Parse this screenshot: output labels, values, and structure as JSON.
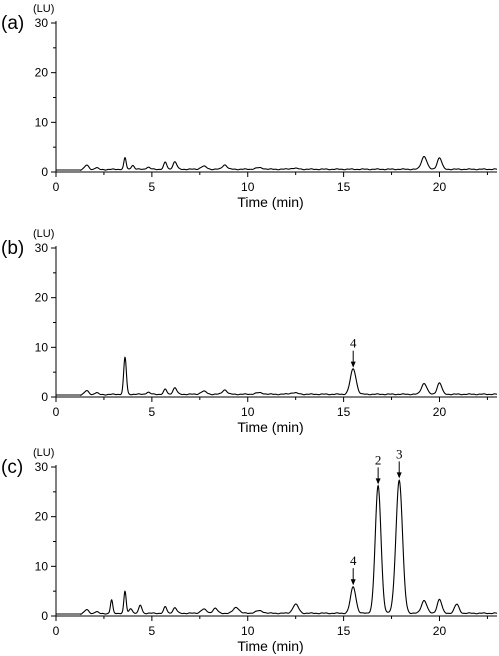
{
  "chart_data": [
    {
      "type": "line",
      "panel_label": "(a)",
      "unit_label": "(LU)",
      "xlabel": "Time (min)",
      "xlim": [
        0,
        23
      ],
      "ylim": [
        0,
        30
      ],
      "xticks": [
        0,
        5,
        10,
        15,
        20
      ],
      "yticks": [
        0,
        10,
        20,
        30
      ],
      "baseline": 0.4,
      "peaks": [
        {
          "t": 1.6,
          "h": 0.9,
          "w": 0.12
        },
        {
          "t": 2.1,
          "h": 0.4,
          "w": 0.1
        },
        {
          "t": 3.6,
          "h": 2.3,
          "w": 0.06
        },
        {
          "t": 4.0,
          "h": 0.8,
          "w": 0.08
        },
        {
          "t": 4.8,
          "h": 0.4,
          "w": 0.1
        },
        {
          "t": 5.7,
          "h": 1.4,
          "w": 0.08
        },
        {
          "t": 6.2,
          "h": 1.5,
          "w": 0.1
        },
        {
          "t": 7.7,
          "h": 0.6,
          "w": 0.15
        },
        {
          "t": 8.8,
          "h": 0.9,
          "w": 0.12
        },
        {
          "t": 10.6,
          "h": 0.3,
          "w": 0.2
        },
        {
          "t": 12.4,
          "h": 0.2,
          "w": 0.2
        },
        {
          "t": 19.2,
          "h": 2.6,
          "w": 0.14
        },
        {
          "t": 20.0,
          "h": 2.3,
          "w": 0.12
        }
      ],
      "annotations": []
    },
    {
      "type": "line",
      "panel_label": "(b)",
      "unit_label": "(LU)",
      "xlabel": "Time (min)",
      "xlim": [
        0,
        23
      ],
      "ylim": [
        0,
        30
      ],
      "xticks": [
        0,
        5,
        10,
        15,
        20
      ],
      "yticks": [
        0,
        10,
        20,
        30
      ],
      "baseline": 0.4,
      "peaks": [
        {
          "t": 1.6,
          "h": 0.8,
          "w": 0.12
        },
        {
          "t": 2.1,
          "h": 0.4,
          "w": 0.1
        },
        {
          "t": 3.6,
          "h": 7.4,
          "w": 0.07
        },
        {
          "t": 4.8,
          "h": 0.4,
          "w": 0.1
        },
        {
          "t": 5.7,
          "h": 1.0,
          "w": 0.08
        },
        {
          "t": 6.2,
          "h": 1.3,
          "w": 0.1
        },
        {
          "t": 7.7,
          "h": 0.6,
          "w": 0.15
        },
        {
          "t": 8.8,
          "h": 0.9,
          "w": 0.12
        },
        {
          "t": 10.6,
          "h": 0.3,
          "w": 0.2
        },
        {
          "t": 12.4,
          "h": 0.3,
          "w": 0.2
        },
        {
          "t": 15.5,
          "h": 5.1,
          "w": 0.15
        },
        {
          "t": 19.2,
          "h": 2.2,
          "w": 0.14
        },
        {
          "t": 20.0,
          "h": 2.3,
          "w": 0.12
        }
      ],
      "annotations": [
        {
          "label": "4",
          "x": 15.5,
          "y": 5.5
        }
      ]
    },
    {
      "type": "line",
      "panel_label": "(c)",
      "unit_label": "(LU)",
      "xlabel": "Time (min)",
      "xlim": [
        0,
        23
      ],
      "ylim": [
        0,
        30
      ],
      "xticks": [
        0,
        5,
        10,
        15,
        20
      ],
      "yticks": [
        0,
        10,
        20,
        30
      ],
      "baseline": 0.4,
      "peaks": [
        {
          "t": 1.6,
          "h": 0.8,
          "w": 0.12
        },
        {
          "t": 2.1,
          "h": 0.4,
          "w": 0.1
        },
        {
          "t": 2.9,
          "h": 2.7,
          "w": 0.06
        },
        {
          "t": 3.6,
          "h": 4.4,
          "w": 0.06
        },
        {
          "t": 3.9,
          "h": 1.0,
          "w": 0.08
        },
        {
          "t": 4.4,
          "h": 1.6,
          "w": 0.08
        },
        {
          "t": 5.7,
          "h": 1.3,
          "w": 0.08
        },
        {
          "t": 6.2,
          "h": 1.1,
          "w": 0.1
        },
        {
          "t": 7.7,
          "h": 0.8,
          "w": 0.15
        },
        {
          "t": 8.3,
          "h": 1.0,
          "w": 0.12
        },
        {
          "t": 9.4,
          "h": 1.2,
          "w": 0.15
        },
        {
          "t": 10.6,
          "h": 0.5,
          "w": 0.2
        },
        {
          "t": 12.5,
          "h": 1.8,
          "w": 0.15
        },
        {
          "t": 15.5,
          "h": 5.3,
          "w": 0.14
        },
        {
          "t": 16.8,
          "h": 25.6,
          "w": 0.15
        },
        {
          "t": 17.9,
          "h": 26.8,
          "w": 0.17
        },
        {
          "t": 19.2,
          "h": 2.6,
          "w": 0.14
        },
        {
          "t": 20.0,
          "h": 2.8,
          "w": 0.12
        },
        {
          "t": 20.9,
          "h": 1.8,
          "w": 0.12
        }
      ],
      "annotations": [
        {
          "label": "4",
          "x": 15.5,
          "y": 5.8
        },
        {
          "label": "2",
          "x": 16.8,
          "y": 26.1
        },
        {
          "label": "3",
          "x": 17.9,
          "y": 27.3
        }
      ]
    }
  ]
}
